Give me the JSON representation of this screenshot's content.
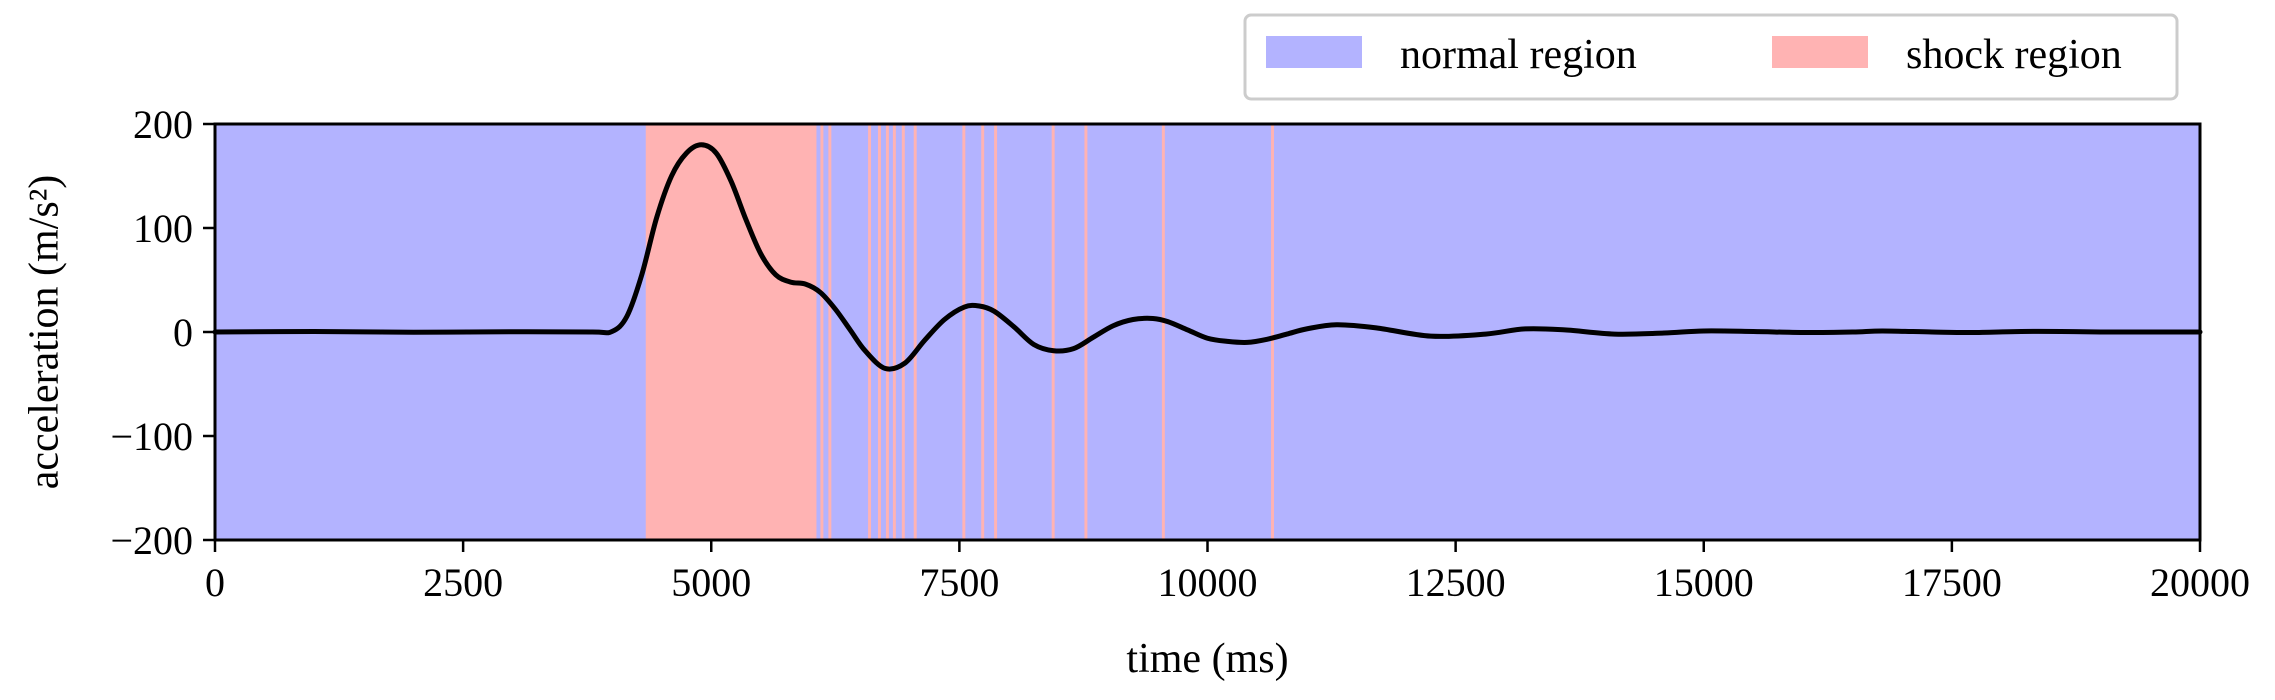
{
  "chart_data": {
    "type": "line",
    "title": "",
    "xlabel": "time (ms)",
    "ylabel": "acceleration (m/s²)",
    "xlim": [
      0,
      20000
    ],
    "ylim": [
      -200,
      200
    ],
    "x_ticks": [
      0,
      2500,
      5000,
      7500,
      10000,
      12500,
      15000,
      17500,
      20000
    ],
    "x_tick_labels": [
      "0",
      "2500",
      "5000",
      "7500",
      "10000",
      "12500",
      "15000",
      "17500",
      "20000"
    ],
    "y_ticks": [
      200,
      100,
      0,
      -100,
      -200
    ],
    "y_tick_labels": [
      "200",
      "100",
      "0",
      "−100",
      "−200"
    ],
    "grid": false,
    "legend": {
      "placement": "above-right",
      "entries": [
        {
          "label": "normal region",
          "color": "#b3b3ff"
        },
        {
          "label": "shock region",
          "color": "#ffb3b3"
        }
      ]
    },
    "background_regions": {
      "normal_color": "#b3b3ff",
      "shock_color": "#ffb3b3",
      "shock_intervals": [
        [
          4340,
          6060
        ],
        [
          6100,
          6130
        ],
        [
          6180,
          6210
        ],
        [
          6580,
          6610
        ],
        [
          6680,
          6710
        ],
        [
          6760,
          6790
        ],
        [
          6830,
          6860
        ],
        [
          6920,
          6950
        ],
        [
          7040,
          7070
        ],
        [
          7530,
          7560
        ],
        [
          7720,
          7750
        ],
        [
          7850,
          7880
        ],
        [
          8430,
          8460
        ],
        [
          8760,
          8790
        ],
        [
          9540,
          9570
        ],
        [
          10640,
          10670
        ]
      ]
    },
    "series": [
      {
        "color": "#000000",
        "x": [
          0,
          1000,
          2000,
          3000,
          3800,
          4000,
          4150,
          4300,
          4450,
          4600,
          4750,
          4900,
          5050,
          5200,
          5350,
          5500,
          5650,
          5800,
          5950,
          6100,
          6250,
          6400,
          6550,
          6750,
          6950,
          7150,
          7350,
          7550,
          7700,
          7850,
          8050,
          8250,
          8450,
          8650,
          8850,
          9050,
          9250,
          9450,
          9600,
          9800,
          10000,
          10200,
          10400,
          10600,
          10800,
          11000,
          11300,
          11700,
          12250,
          12800,
          13200,
          13600,
          14100,
          14600,
          15000,
          15500,
          16000,
          16500,
          16800,
          17300,
          17700,
          18200,
          18600,
          19000,
          19500,
          20000
        ],
        "y": [
          0,
          0.5,
          -0.3,
          0.3,
          0,
          0.5,
          15,
          55,
          110,
          150,
          172,
          180,
          172,
          145,
          108,
          75,
          55,
          48,
          46,
          38,
          22,
          2,
          -18,
          -35,
          -30,
          -8,
          12,
          24,
          25,
          20,
          5,
          -12,
          -18,
          -16,
          -5,
          6,
          12,
          13,
          10,
          2,
          -6,
          -9,
          -10,
          -7,
          -2,
          3,
          7,
          4,
          -4,
          -2,
          3,
          2,
          -2,
          -1,
          1,
          0.5,
          -0.5,
          0,
          1,
          0,
          -0.5,
          0.5,
          0.5,
          0,
          0,
          0
        ]
      }
    ]
  }
}
